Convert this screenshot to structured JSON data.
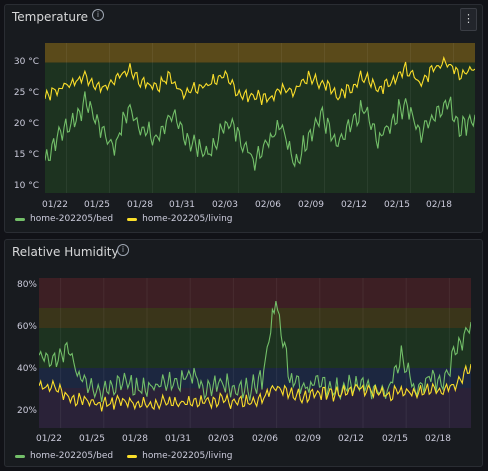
{
  "colors": {
    "bed": "#73bf69",
    "living": "#fade2a"
  },
  "panels": [
    {
      "title": "Temperature",
      "yticks": [
        "30 °C",
        "25 °C",
        "20 °C",
        "15 °C",
        "10 °C"
      ],
      "xticks": [
        "01/22",
        "01/25",
        "01/28",
        "01/31",
        "02/03",
        "02/06",
        "02/09",
        "02/12",
        "02/15",
        "02/18"
      ],
      "legend": [
        "home-202205/bed",
        "home-202205/living"
      ]
    },
    {
      "title": "Relative Humidity",
      "yticks": [
        "80%",
        "60%",
        "40%",
        "20%"
      ],
      "xticks": [
        "01/22",
        "01/25",
        "01/28",
        "01/31",
        "02/03",
        "02/06",
        "02/09",
        "02/12",
        "02/15",
        "02/18"
      ],
      "legend": [
        "home-202205/bed",
        "home-202205/living"
      ]
    }
  ],
  "chart_data": [
    {
      "type": "line",
      "title": "Temperature",
      "ylim": [
        10,
        33
      ],
      "x": [
        "01/20",
        "01/21",
        "01/22",
        "01/23",
        "01/24",
        "01/25",
        "01/26",
        "01/27",
        "01/28",
        "01/29",
        "01/30",
        "01/31",
        "02/01",
        "02/02",
        "02/03",
        "02/04",
        "02/05",
        "02/06",
        "02/07",
        "02/08",
        "02/09",
        "02/10",
        "02/11",
        "02/12",
        "02/13",
        "02/14",
        "02/15",
        "02/16",
        "02/17",
        "02/18",
        "02/19",
        "02/20"
      ],
      "series": [
        {
          "name": "home-202205/bed",
          "values": [
            15,
            19,
            21,
            24,
            20,
            17,
            23,
            20,
            18,
            22,
            19,
            17,
            16,
            21,
            19,
            15,
            18,
            21,
            14,
            19,
            22,
            17,
            20,
            23,
            18,
            21,
            24,
            19,
            22,
            24,
            20,
            22
          ]
        },
        {
          "name": "home-202205/living",
          "values": [
            25,
            26,
            27,
            28,
            26,
            27,
            29,
            27,
            26,
            28,
            25,
            26,
            27,
            28,
            25,
            25,
            24,
            26,
            26,
            28,
            27,
            25,
            26,
            28,
            26,
            27,
            29,
            27,
            29,
            30,
            28,
            29
          ]
        }
      ],
      "thresholds": [
        {
          "from": 30,
          "to": 33,
          "color": "#5a4a1a"
        },
        {
          "from": 10,
          "to": 30,
          "color": "#1d3320"
        }
      ]
    },
    {
      "type": "line",
      "title": "Relative Humidity",
      "ylim": [
        10,
        85
      ],
      "x": [
        "01/20",
        "01/21",
        "01/22",
        "01/23",
        "01/24",
        "01/25",
        "01/26",
        "01/27",
        "01/28",
        "01/29",
        "01/30",
        "01/31",
        "02/01",
        "02/02",
        "02/03",
        "02/04",
        "02/05",
        "02/06",
        "02/07",
        "02/08",
        "02/09",
        "02/10",
        "02/11",
        "02/12",
        "02/13",
        "02/14",
        "02/15",
        "02/16",
        "02/17",
        "02/18",
        "02/19",
        "02/20"
      ],
      "series": [
        {
          "name": "home-202205/bed",
          "values": [
            45,
            43,
            50,
            35,
            28,
            30,
            33,
            30,
            29,
            35,
            32,
            38,
            30,
            33,
            30,
            29,
            34,
            75,
            35,
            30,
            33,
            29,
            31,
            33,
            30,
            29,
            45,
            30,
            35,
            33,
            50,
            63
          ]
        },
        {
          "name": "home-202205/living",
          "values": [
            32,
            30,
            26,
            24,
            22,
            22,
            23,
            22,
            21,
            23,
            22,
            24,
            23,
            24,
            22,
            23,
            25,
            30,
            27,
            26,
            28,
            27,
            28,
            30,
            28,
            27,
            28,
            27,
            30,
            29,
            33,
            42
          ]
        }
      ],
      "thresholds": [
        {
          "from": 70,
          "to": 85,
          "color": "#3d1f24"
        },
        {
          "from": 60,
          "to": 70,
          "color": "#3a351a"
        },
        {
          "from": 40,
          "to": 60,
          "color": "#1d3320"
        },
        {
          "from": 30,
          "to": 40,
          "color": "#1c2740"
        },
        {
          "from": 10,
          "to": 30,
          "color": "#2a2238"
        }
      ]
    }
  ]
}
